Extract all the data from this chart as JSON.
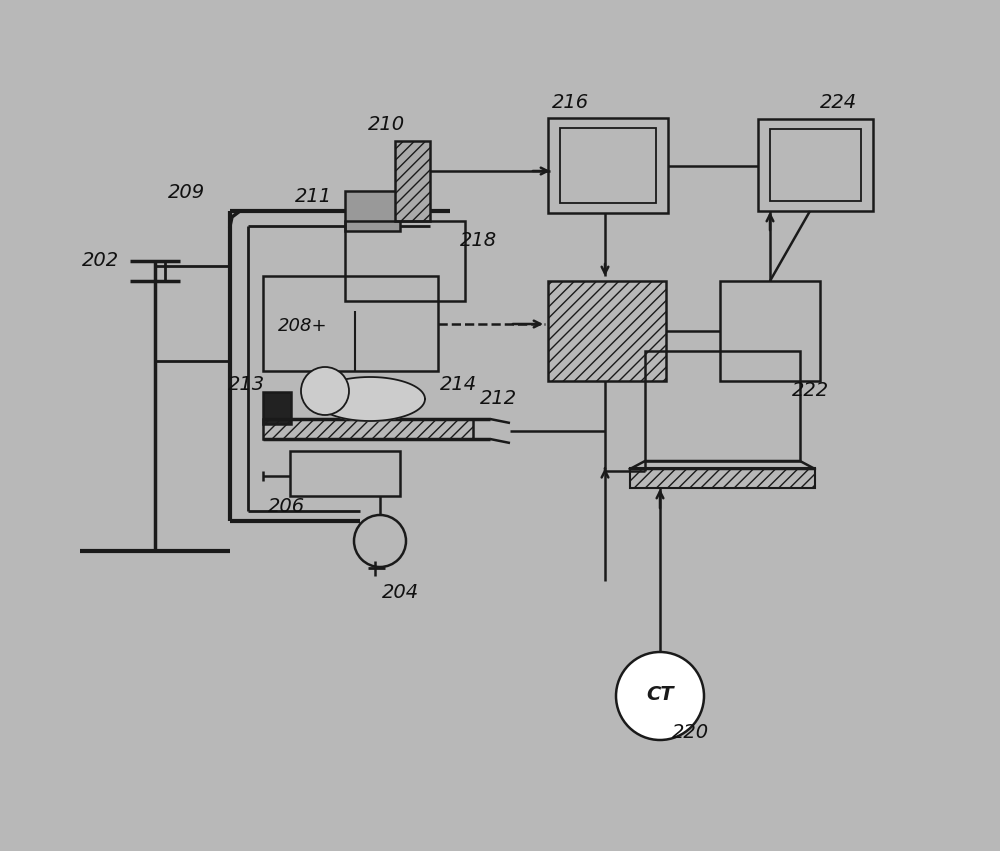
{
  "bg_color": "#b8b8b8",
  "line_color": "#1a1a1a",
  "label_color": "#111111",
  "figsize": [
    10.0,
    8.51
  ],
  "dpi": 100
}
